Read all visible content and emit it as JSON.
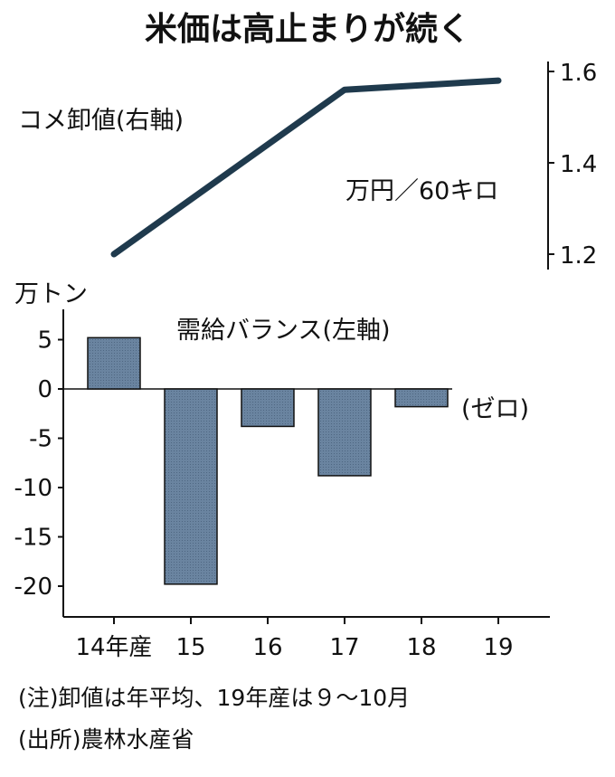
{
  "title": "米価は高止まりが続く",
  "chart_data": [
    {
      "type": "line",
      "series": [
        {
          "name": "コメ卸値(右軸)",
          "x": [
            "14年産",
            "17",
            "19"
          ],
          "values": [
            1.2,
            1.56,
            1.58
          ]
        }
      ],
      "axis": "right",
      "ylabel": "万円／60キロ",
      "yticks": [
        "1.2",
        "1.4",
        "1.6"
      ],
      "ylim": [
        1.16,
        1.62
      ],
      "line_color": "#1f3a4d"
    },
    {
      "type": "bar",
      "categories": [
        "14年産",
        "15",
        "16",
        "17",
        "18",
        "19"
      ],
      "series": [
        {
          "name": "需給バランス(左軸)",
          "values": [
            5.2,
            -19.8,
            -3.8,
            -8.8,
            -1.8,
            0
          ]
        }
      ],
      "axis": "left",
      "ylabel": "万トン",
      "yticks": [
        "5",
        "0",
        "-5",
        "-10",
        "-15",
        "-20"
      ],
      "ylim": [
        -23,
        8
      ],
      "zero_note": "(ゼロ)",
      "bar_color": "#6a84a0"
    }
  ],
  "notes": [
    "(注)卸値は年平均、19年産は９～10月",
    "(出所)農林水産省"
  ]
}
